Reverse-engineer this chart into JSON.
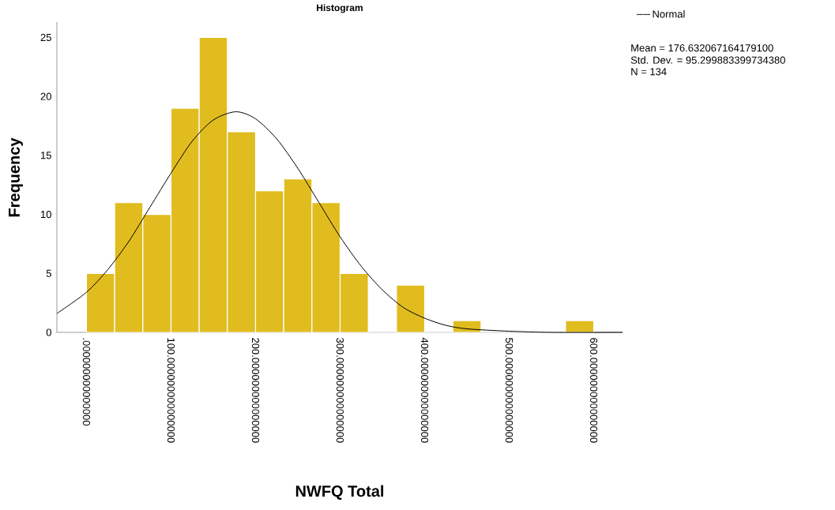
{
  "chart_data": {
    "type": "histogram",
    "title": "Histogram",
    "xlabel": "NWFQ Total",
    "ylabel": "Frequency",
    "bins": [
      0,
      33.33,
      66.67,
      100,
      133.33,
      166.67,
      200,
      233.33,
      266.67,
      300,
      333.33,
      366.67,
      400,
      433.33,
      466.67,
      500,
      533.33,
      566.67,
      600
    ],
    "values": [
      5,
      11,
      10,
      19,
      25,
      17,
      12,
      13,
      11,
      5,
      0,
      4,
      0,
      1,
      0,
      0,
      0,
      1
    ],
    "color": "#e0bc1f",
    "series": [
      {
        "name": "Normal",
        "type": "line",
        "color": "#000000",
        "x": [
          -35,
          0,
          25,
          50,
          75,
          100,
          125,
          150,
          176.6,
          200,
          225,
          250,
          275,
          300,
          325,
          350,
          375,
          400,
          425,
          450,
          500,
          550,
          634
        ],
        "values": [
          1.6,
          3.4,
          5.3,
          7.7,
          10.6,
          13.5,
          16.2,
          18.0,
          18.7,
          18.1,
          16.4,
          13.9,
          11.0,
          8.1,
          5.6,
          3.6,
          2.1,
          1.2,
          0.6,
          0.3,
          0.1,
          0,
          0
        ]
      }
    ],
    "xlim": [
      -35,
      634
    ],
    "ylim": [
      0,
      26.3
    ],
    "xticks": [
      {
        "value": 0,
        "label": ".000000000000000"
      },
      {
        "value": 100,
        "label": "100.000000000000000"
      },
      {
        "value": 200,
        "label": "200.000000000000000"
      },
      {
        "value": 300,
        "label": "300.000000000000000"
      },
      {
        "value": 400,
        "label": "400.000000000000000"
      },
      {
        "value": 500,
        "label": "500.000000000000000"
      },
      {
        "value": 600,
        "label": "600.000000000000000"
      }
    ],
    "yticks": [
      0,
      5,
      10,
      15,
      20,
      25
    ],
    "legend": "top right",
    "annotations": [
      "Mean = 176.632067164179100",
      "Std. Dev. = 95.299883399734380",
      "N = 134"
    ]
  }
}
